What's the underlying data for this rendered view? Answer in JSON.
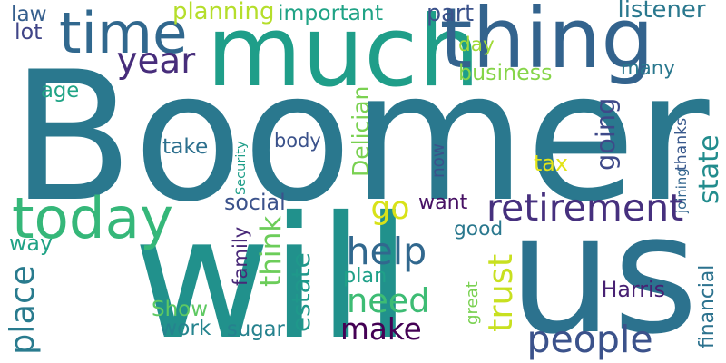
{
  "words": [
    {
      "text": "Boomer",
      "color": "#2a788e",
      "vertical": false
    },
    {
      "text": "will",
      "color": "#21918c",
      "vertical": false
    },
    {
      "text": "us",
      "color": "#2c728e",
      "vertical": false
    },
    {
      "text": "much",
      "color": "#1f9e89",
      "vertical": false
    },
    {
      "text": "thing",
      "color": "#33638d",
      "vertical": false
    },
    {
      "text": "time",
      "color": "#31688e",
      "vertical": false
    },
    {
      "text": "today",
      "color": "#35b779",
      "vertical": false
    },
    {
      "text": "retirement",
      "color": "#46307e",
      "vertical": false
    },
    {
      "text": "people",
      "color": "#3b528b",
      "vertical": false
    },
    {
      "text": "year",
      "color": "#472d7b",
      "vertical": false
    },
    {
      "text": "help",
      "color": "#31688e",
      "vertical": false
    },
    {
      "text": "need",
      "color": "#3dbc74",
      "vertical": false
    },
    {
      "text": "make",
      "color": "#440154",
      "vertical": false
    },
    {
      "text": "go",
      "color": "#d8e219",
      "vertical": false
    },
    {
      "text": "going",
      "color": "#3e4989",
      "vertical": true
    },
    {
      "text": "state",
      "color": "#228c8d",
      "vertical": true
    },
    {
      "text": "think",
      "color": "#6ccd5a",
      "vertical": true
    },
    {
      "text": "estate",
      "color": "#1f988b",
      "vertical": true
    },
    {
      "text": "trust",
      "color": "#c8e020",
      "vertical": true
    },
    {
      "text": "place",
      "color": "#297b8e",
      "vertical": true
    },
    {
      "text": "planning",
      "color": "#b5de2b",
      "vertical": false
    },
    {
      "text": "important",
      "color": "#20a386",
      "vertical": false
    },
    {
      "text": "listener",
      "color": "#2a788e",
      "vertical": false
    },
    {
      "text": "part",
      "color": "#3b528b",
      "vertical": false
    },
    {
      "text": "law",
      "color": "#355f8d",
      "vertical": false
    },
    {
      "text": "lot",
      "color": "#404588",
      "vertical": false
    },
    {
      "text": "day",
      "color": "#a0da39",
      "vertical": false
    },
    {
      "text": "business",
      "color": "#86d549",
      "vertical": false
    },
    {
      "text": "many",
      "color": "#2a788e",
      "vertical": false
    },
    {
      "text": "age",
      "color": "#20a486",
      "vertical": false
    },
    {
      "text": "take",
      "color": "#2d708e",
      "vertical": false
    },
    {
      "text": "body",
      "color": "#3b528b",
      "vertical": false
    },
    {
      "text": "Security",
      "color": "#1f9e89",
      "vertical": true
    },
    {
      "text": "Delician",
      "color": "#7ad151",
      "vertical": true
    },
    {
      "text": "now",
      "color": "#3b528b",
      "vertical": true
    },
    {
      "text": "thanks",
      "color": "#38588c",
      "vertical": true
    },
    {
      "text": "joining",
      "color": "#32658e",
      "vertical": true
    },
    {
      "text": "tax",
      "color": "#e2e418",
      "vertical": false
    },
    {
      "text": "social",
      "color": "#3b528b",
      "vertical": false
    },
    {
      "text": "want",
      "color": "#471164",
      "vertical": false
    },
    {
      "text": "way",
      "color": "#20a386",
      "vertical": false
    },
    {
      "text": "good",
      "color": "#2a788e",
      "vertical": false
    },
    {
      "text": "family",
      "color": "#482878",
      "vertical": true
    },
    {
      "text": "plan",
      "color": "#1fa088",
      "vertical": false
    },
    {
      "text": "great",
      "color": "#7ad151",
      "vertical": true
    },
    {
      "text": "Harris",
      "color": "#482173",
      "vertical": false
    },
    {
      "text": "financial",
      "color": "#2c728e",
      "vertical": true
    },
    {
      "text": "Show",
      "color": "#5ec962",
      "vertical": false
    },
    {
      "text": "work",
      "color": "#25848e",
      "vertical": false
    },
    {
      "text": "sugar",
      "color": "#26828e",
      "vertical": false
    }
  ]
}
